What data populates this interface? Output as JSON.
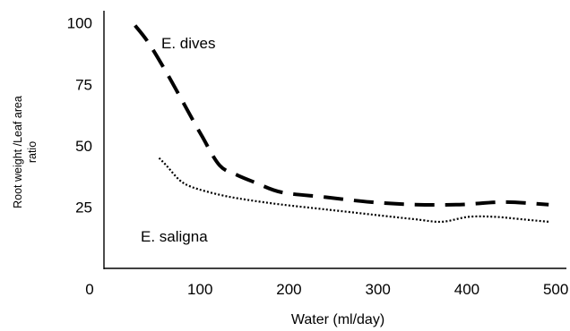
{
  "chart_data": {
    "type": "line",
    "title": "",
    "xlabel": "Water (ml/day)",
    "ylabel": "Root weight /Leaf area ratio",
    "ylabel_lines": [
      "Root weight /Leaf area",
      "ratio"
    ],
    "xlim": [
      0,
      520
    ],
    "ylim": [
      0,
      105
    ],
    "x_ticks": [
      0,
      100,
      200,
      300,
      400,
      500
    ],
    "y_ticks": [
      25,
      50,
      75,
      100
    ],
    "grid": false,
    "legend": "none",
    "series": [
      {
        "name": "E. dives",
        "line_style": "dashed",
        "color": "#000000",
        "x": [
          35,
          50,
          70,
          90,
          110,
          130,
          150,
          170,
          200,
          250,
          300,
          350,
          400,
          450,
          500
        ],
        "y": [
          99,
          92,
          80,
          67,
          54,
          42,
          38,
          35,
          31,
          29,
          27,
          26,
          26,
          27,
          26
        ]
      },
      {
        "name": "E. saligna",
        "line_style": "dotted",
        "color": "#000000",
        "x": [
          62,
          70,
          85,
          100,
          130,
          160,
          200,
          250,
          300,
          350,
          380,
          410,
          440,
          470,
          500
        ],
        "y": [
          45,
          42,
          36,
          33,
          30,
          28,
          26,
          24,
          22,
          20,
          19,
          21,
          21,
          20,
          19
        ]
      }
    ]
  }
}
